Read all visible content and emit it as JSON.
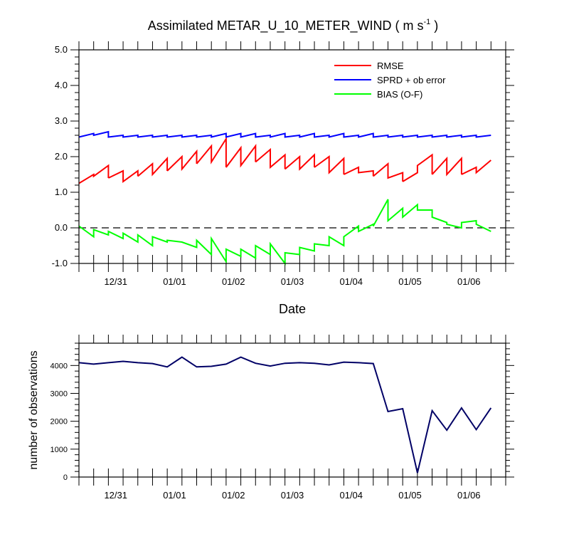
{
  "chart_data": [
    {
      "type": "line",
      "title": "Assimilated METAR_U_10_METER_WIND ( m s",
      "title_unit_sup": "-1",
      "title_close": " )",
      "xlabel": "Date",
      "ylabel": "",
      "ylim": [
        -1.0,
        5.0
      ],
      "yticks": [
        "-1.0",
        "0.0",
        "1.0",
        "2.0",
        "3.0",
        "4.0",
        "5.0"
      ],
      "xlim": [
        0,
        14.5
      ],
      "xtick_labels": [
        {
          "x": 1.25,
          "label": "12/31"
        },
        {
          "x": 3.25,
          "label": "01/01"
        },
        {
          "x": 5.25,
          "label": "01/02"
        },
        {
          "x": 7.25,
          "label": "01/03"
        },
        {
          "x": 9.25,
          "label": "01/04"
        },
        {
          "x": 11.25,
          "label": "01/05"
        },
        {
          "x": 13.25,
          "label": "01/06"
        }
      ],
      "legend": [
        {
          "name": "RMSE",
          "color": "#ff0000"
        },
        {
          "name": "SPRD + ob error",
          "color": "#0000ff"
        },
        {
          "name": "BIAS (O-F)",
          "color": "#00ff00"
        }
      ],
      "zero_line": true,
      "series": [
        {
          "name": "RMSE",
          "color": "#ff0000",
          "segments": [
            [
              0.0,
              1.25,
              0.5,
              1.5,
              0.5,
              1.45,
              1.0,
              1.75,
              1.0,
              1.4
            ],
            [
              1.0,
              1.4,
              1.5,
              1.6,
              1.5,
              1.3,
              2.0,
              1.6,
              2.0,
              1.45
            ],
            [
              2.0,
              1.45,
              2.5,
              1.8,
              2.5,
              1.5,
              3.0,
              1.95,
              3.0,
              1.6
            ],
            [
              3.0,
              1.6,
              3.5,
              2.0,
              3.5,
              1.65,
              4.0,
              2.15,
              4.0,
              1.8
            ],
            [
              4.0,
              1.8,
              4.5,
              2.3,
              4.5,
              1.85,
              5.0,
              2.5,
              5.0,
              1.7
            ],
            [
              5.0,
              1.7,
              5.5,
              2.25,
              5.5,
              1.75,
              6.0,
              2.3,
              6.0,
              1.85
            ],
            [
              6.0,
              1.85,
              6.5,
              2.2,
              6.5,
              1.7,
              7.0,
              2.05,
              7.0,
              1.65
            ],
            [
              7.0,
              1.65,
              7.5,
              2.0,
              7.5,
              1.65,
              8.0,
              2.05,
              8.0,
              1.7
            ],
            [
              8.0,
              1.7,
              8.5,
              2.0,
              8.5,
              1.55,
              9.0,
              1.95,
              9.0,
              1.5
            ],
            [
              9.0,
              1.5,
              9.5,
              1.7,
              9.5,
              1.55,
              10.0,
              1.6,
              10.0,
              1.45
            ],
            [
              10.0,
              1.45,
              10.5,
              1.8,
              10.5,
              1.4,
              11.0,
              1.55,
              11.0,
              1.3
            ],
            [
              11.0,
              1.3,
              11.5,
              1.55,
              11.5,
              1.75,
              12.0,
              2.05,
              12.0,
              1.5
            ],
            [
              12.0,
              1.5,
              12.5,
              1.95,
              12.5,
              1.5,
              13.0,
              1.95,
              13.0,
              1.5
            ],
            [
              13.0,
              1.5,
              13.5,
              1.7,
              13.5,
              1.55,
              14.0,
              1.9
            ]
          ]
        },
        {
          "name": "SPRD + ob error",
          "color": "#0000ff",
          "segments": [
            [
              0.0,
              2.55,
              0.5,
              2.65,
              0.5,
              2.6,
              1.0,
              2.7,
              1.0,
              2.55,
              1.5,
              2.6,
              1.5,
              2.55,
              2.0,
              2.6,
              2.0,
              2.55,
              2.5,
              2.6,
              2.5,
              2.55,
              3.0,
              2.6,
              3.0,
              2.55,
              3.5,
              2.6,
              3.5,
              2.55,
              4.0,
              2.6,
              4.0,
              2.55,
              4.5,
              2.6,
              4.5,
              2.55,
              5.0,
              2.65,
              5.0,
              2.55,
              5.5,
              2.65,
              5.5,
              2.55,
              6.0,
              2.65,
              6.0,
              2.55,
              6.5,
              2.6,
              6.5,
              2.55,
              7.0,
              2.65,
              7.0,
              2.55,
              7.5,
              2.6,
              7.5,
              2.55,
              8.0,
              2.65,
              8.0,
              2.55,
              8.5,
              2.6,
              8.5,
              2.55,
              9.0,
              2.65,
              9.0,
              2.55,
              9.5,
              2.6,
              9.5,
              2.55,
              10.0,
              2.65,
              10.0,
              2.55,
              10.5,
              2.6,
              10.5,
              2.55,
              11.0,
              2.6,
              11.0,
              2.55,
              11.5,
              2.6,
              11.5,
              2.55,
              12.0,
              2.6,
              12.0,
              2.55,
              12.5,
              2.6,
              12.5,
              2.55,
              13.0,
              2.6,
              13.0,
              2.55,
              13.5,
              2.6,
              13.5,
              2.55,
              14.0,
              2.6
            ]
          ]
        },
        {
          "name": "BIAS (O-F)",
          "color": "#00ff00",
          "segments": [
            [
              0.0,
              0.05,
              0.5,
              -0.25,
              0.5,
              -0.05,
              1.0,
              -0.2,
              1.0,
              -0.1,
              1.5,
              -0.3,
              1.5,
              -0.15,
              2.0,
              -0.4,
              2.0,
              -0.2,
              2.5,
              -0.5,
              2.5,
              -0.25,
              3.0,
              -0.4,
              3.0,
              -0.35,
              3.5,
              -0.4,
              3.5,
              -0.4,
              4.0,
              -0.55,
              4.0,
              -0.35,
              4.5,
              -0.75,
              4.5,
              -0.3,
              5.0,
              -0.95,
              5.0,
              -0.6,
              5.5,
              -0.8,
              5.5,
              -0.6,
              6.0,
              -0.85,
              6.0,
              -0.5,
              6.5,
              -0.75,
              6.5,
              -0.45,
              7.0,
              -1.0,
              7.0,
              -0.7,
              7.5,
              -0.75,
              7.5,
              -0.55,
              8.0,
              -0.65,
              8.0,
              -0.45,
              8.5,
              -0.5,
              8.5,
              -0.25,
              9.0,
              -0.5,
              9.0,
              -0.25,
              9.5,
              0.05,
              9.5,
              -0.1,
              10.0,
              0.1,
              10.0,
              0.05,
              10.5,
              0.8,
              10.5,
              0.2,
              11.0,
              0.55,
              11.0,
              0.3,
              11.5,
              0.65,
              11.5,
              0.5,
              12.0,
              0.5,
              12.0,
              0.3,
              12.5,
              0.15,
              12.5,
              0.1,
              13.0,
              0.0,
              13.0,
              0.15,
              13.5,
              0.2,
              13.5,
              0.1,
              14.0,
              -0.1
            ]
          ]
        }
      ]
    },
    {
      "type": "line",
      "title": "",
      "xlabel": "",
      "ylabel": "number of observations",
      "ylim": [
        0,
        4800
      ],
      "yticks": [
        "0",
        "1000",
        "2000",
        "3000",
        "4000"
      ],
      "xlim": [
        0,
        14.5
      ],
      "xtick_labels": [
        {
          "x": 1.25,
          "label": "12/31"
        },
        {
          "x": 3.25,
          "label": "01/01"
        },
        {
          "x": 5.25,
          "label": "01/02"
        },
        {
          "x": 7.25,
          "label": "01/03"
        },
        {
          "x": 9.25,
          "label": "01/04"
        },
        {
          "x": 11.25,
          "label": "01/05"
        },
        {
          "x": 13.25,
          "label": "01/06"
        }
      ],
      "series": [
        {
          "name": "observations",
          "color": "#000066",
          "points": [
            [
              0.0,
              4100
            ],
            [
              0.5,
              4050
            ],
            [
              1.0,
              4100
            ],
            [
              1.5,
              4150
            ],
            [
              2.0,
              4100
            ],
            [
              2.5,
              4070
            ],
            [
              3.0,
              3950
            ],
            [
              3.5,
              4300
            ],
            [
              4.0,
              3950
            ],
            [
              4.5,
              3970
            ],
            [
              5.0,
              4050
            ],
            [
              5.5,
              4300
            ],
            [
              6.0,
              4080
            ],
            [
              6.5,
              3980
            ],
            [
              7.0,
              4080
            ],
            [
              7.5,
              4100
            ],
            [
              8.0,
              4080
            ],
            [
              8.5,
              4020
            ],
            [
              9.0,
              4120
            ],
            [
              9.5,
              4100
            ],
            [
              10.0,
              4070
            ],
            [
              10.5,
              2350
            ],
            [
              11.0,
              2450
            ],
            [
              11.5,
              150
            ],
            [
              12.0,
              2380
            ],
            [
              12.5,
              1680
            ],
            [
              13.0,
              2480
            ],
            [
              13.5,
              1700
            ],
            [
              14.0,
              2480
            ]
          ]
        }
      ]
    }
  ]
}
